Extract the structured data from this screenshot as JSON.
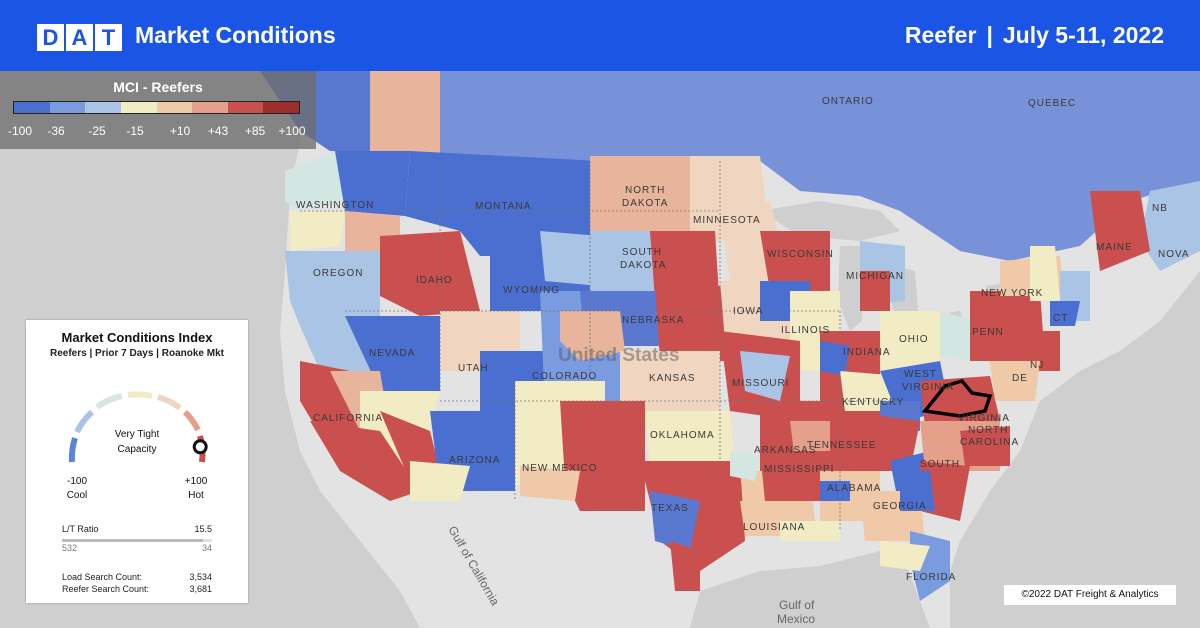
{
  "header": {
    "logo_letters": [
      "D",
      "A",
      "T"
    ],
    "title": "Market Conditions",
    "equipment": "Reefer",
    "separator": "|",
    "date_range": "July 5-11, 2022"
  },
  "legend": {
    "title": "MCI - Reefers",
    "colors": [
      "#4a6fd0",
      "#7b9be0",
      "#a9c4e4",
      "#f2ecc4",
      "#f0c9a8",
      "#e4a08a",
      "#c9504f",
      "#9e2d2d"
    ],
    "ticks": [
      "-100",
      "-36",
      "-25",
      "-15",
      "+10",
      "+43",
      "+85",
      "+100"
    ]
  },
  "map": {
    "selected_market": "Roanoke",
    "water_labels": [
      "Gulf of California",
      "Gulf of",
      "Mexico"
    ],
    "country_labels": [
      "United States"
    ],
    "region_labels": [
      "ONTARIO",
      "QUEBEC",
      "NB",
      "NOVA",
      "WASHINGTON",
      "MONTANA",
      "NORTH",
      "DAKOTA",
      "MINNESOTA",
      "OREGON",
      "IDAHO",
      "SOUTH",
      "DAKOTA",
      "WISCONSIN",
      "MICHIGAN",
      "WYOMING",
      "NEBRASKA",
      "IOWA",
      "NEW YORK",
      "MAINE",
      "NEVADA",
      "UTAH",
      "COLORADO",
      "KANSAS",
      "ILLINOIS",
      "INDIANA",
      "OHIO",
      "PENN",
      "NJ",
      "CT",
      "CALIFORNIA",
      "MISSOURI",
      "WEST",
      "VIRGINIA",
      "VIRGINIA",
      "KENTUCKY",
      "DE",
      "TENNESSEE",
      "NORTH",
      "CAROLINA",
      "ARIZONA",
      "NEW MEXICO",
      "OKLAHOMA",
      "ARKANSAS",
      "SOUTH",
      "MISSISSIPPI",
      "ALABAMA",
      "GEORGIA",
      "TEXAS",
      "LOUISIANA",
      "FLORIDA"
    ]
  },
  "card": {
    "title": "Market Conditions Index",
    "subtitle": "Reefers | Prior 7 Days | Roanoke Mkt",
    "status_line1": "Very Tight",
    "status_line2": "Capacity",
    "gauge_value": 100,
    "min_value": "-100",
    "min_label": "Cool",
    "max_value": "+100",
    "max_label": "Hot",
    "lt_label": "L/T Ratio",
    "lt_value": "15.5",
    "lt_loads": "532",
    "lt_trucks": "34",
    "lt_fill_fraction": 0.94,
    "load_search_label": "Load Search Count:",
    "load_search_value": "3,534",
    "reefer_search_label": "Reefer Search Count:",
    "reefer_search_value": "3,681"
  },
  "copyright": "©2022 DAT Freight & Analytics"
}
